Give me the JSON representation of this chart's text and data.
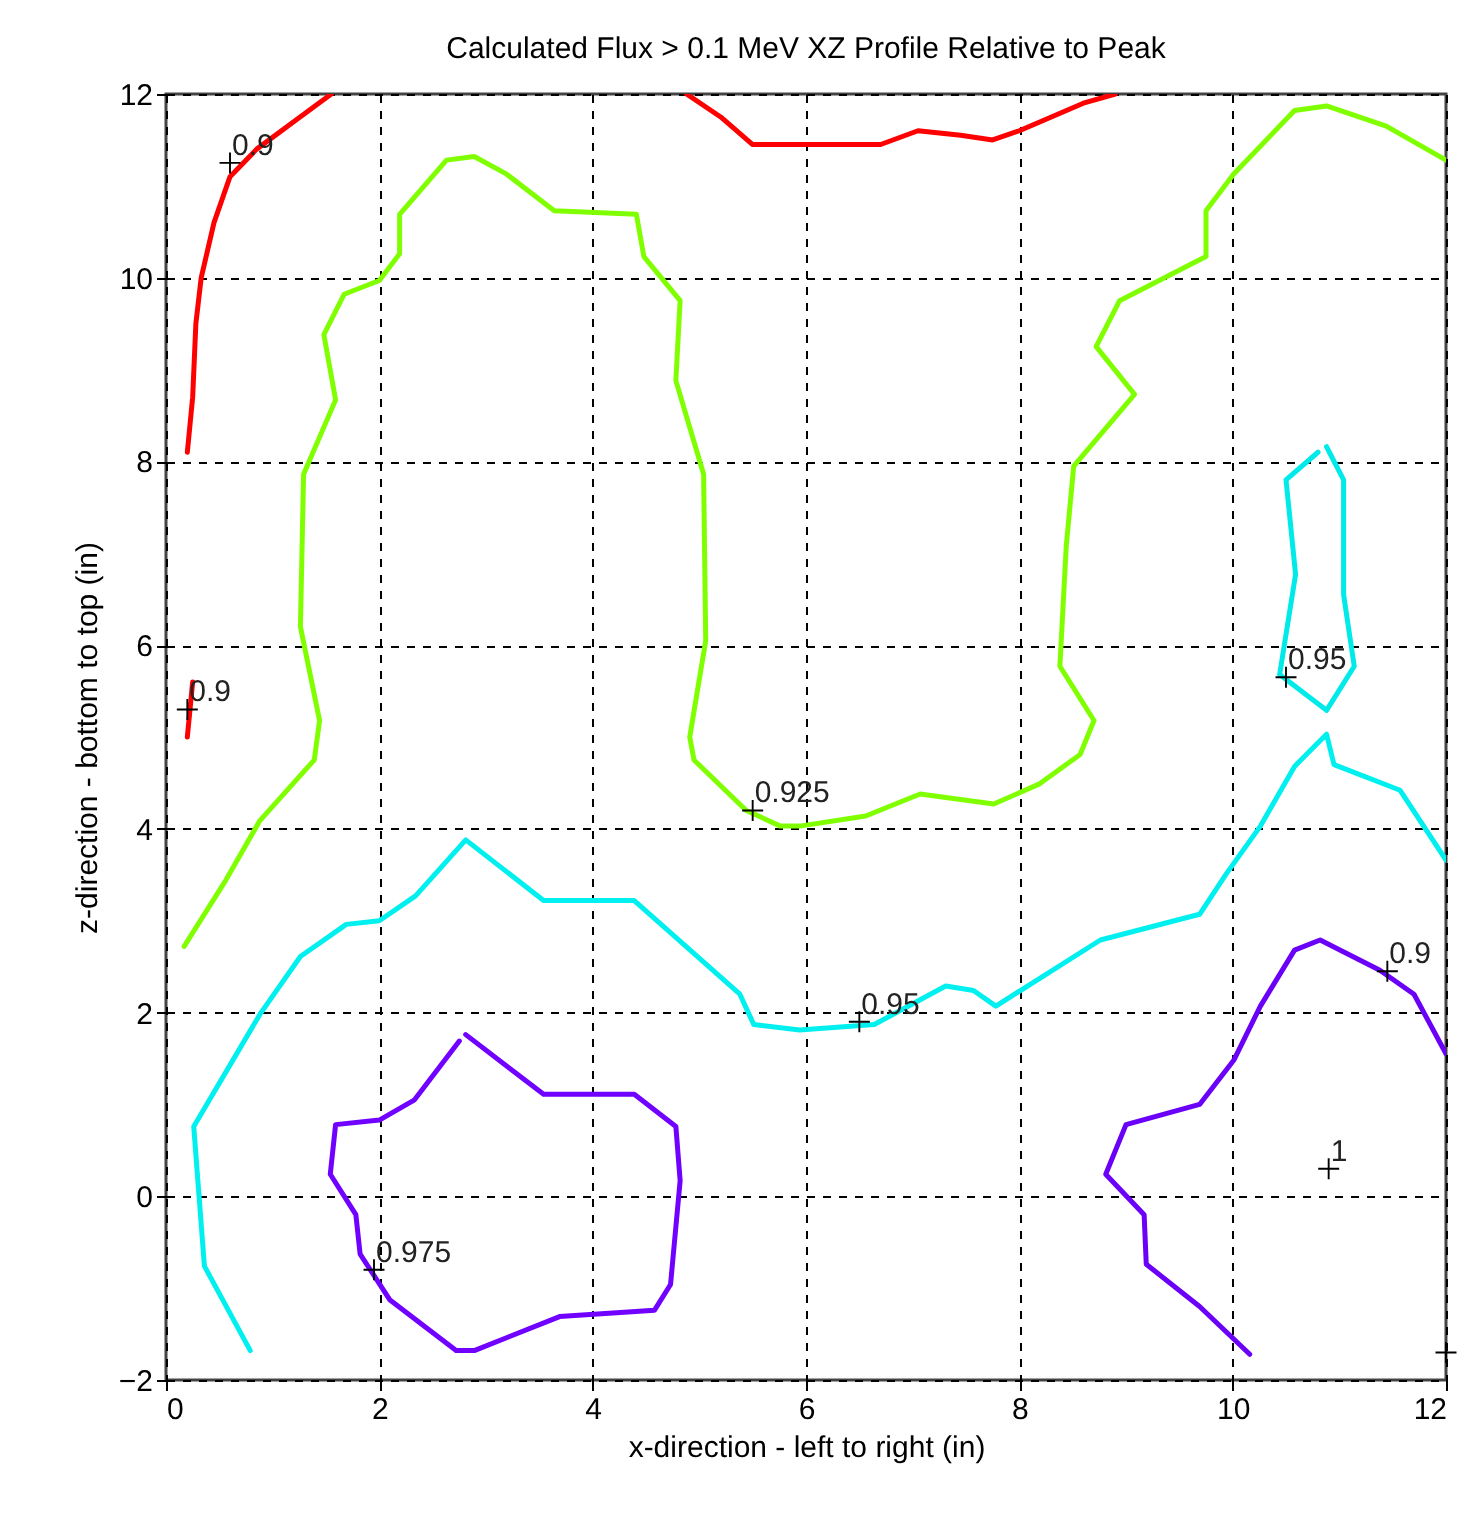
{
  "chart_data": {
    "type": "line",
    "title": "Calculated Flux > 0.1 MeV XZ Profile Relative to Peak",
    "xlabel": "x-direction - left to right (in)",
    "ylabel": "z-direction - bottom to top (in)",
    "xlim": [
      0,
      12
    ],
    "ylim": [
      -2,
      12
    ],
    "xticks": [
      0,
      2,
      4,
      6,
      8,
      10,
      12
    ],
    "yticks": [
      -2,
      0,
      2,
      4,
      6,
      8,
      10,
      12
    ],
    "grid": true,
    "line_style": "solid",
    "series": [
      {
        "color": "#ff0000",
        "x": [
          0.2,
          0.25,
          0.28,
          0.33,
          0.45,
          0.6,
          0.85,
          1.2,
          1.55
        ],
        "values": [
          8.1,
          8.7,
          9.5,
          10,
          10.6,
          11.1,
          11.4,
          11.7,
          12
        ]
      },
      {
        "color": "#fe0000",
        "x": [
          4.88,
          5.2,
          5.5,
          6.3,
          6.7,
          7.05,
          7.45,
          7.75,
          8,
          8.6,
          8.9
        ],
        "values": [
          12,
          11.75,
          11.45,
          11.45,
          11.45,
          11.6,
          11.55,
          11.5,
          11.6,
          11.9,
          12
        ]
      },
      {
        "color": "#fd0000",
        "x": [
          0.2,
          0.25
        ],
        "values": [
          5.0,
          5.6
        ]
      },
      {
        "color": "#80ff00",
        "x": [
          0.17,
          0.56,
          0.88,
          1.39,
          1.44,
          1.26,
          1.29,
          1.59,
          1.48,
          1.67,
          2.0,
          2.19,
          2.19,
          2.63,
          2.89,
          3.19,
          3.64,
          4.41,
          4.48,
          4.82,
          4.78,
          5.04,
          5.06,
          4.91,
          4.95,
          5.44,
          5.76,
          5.94,
          6.56,
          7.07,
          7.76,
          8.19,
          8.57,
          8.7,
          8.38,
          8.44,
          8.51,
          9.08,
          8.72,
          8.94,
          9.75,
          9.75,
          10.01,
          10.58,
          10.88,
          11.44,
          12
        ],
        "values": [
          2.72,
          3.44,
          4.09,
          4.75,
          5.18,
          6.2,
          7.86,
          8.67,
          9.38,
          9.82,
          9.97,
          10.26,
          10.69,
          11.28,
          11.32,
          11.13,
          10.73,
          10.69,
          10.23,
          9.75,
          8.88,
          7.86,
          6.05,
          5.0,
          4.75,
          4.2,
          4.03,
          4.03,
          4.14,
          4.38,
          4.27,
          4.49,
          4.81,
          5.18,
          5.77,
          7.08,
          7.95,
          8.73,
          9.25,
          9.75,
          10.23,
          10.73,
          11.13,
          11.82,
          11.87,
          11.65,
          11.28
        ]
      },
      {
        "color": "#00f0f0",
        "x": [
          0.79,
          0.36,
          0.26,
          0.88,
          1.26,
          1.69,
          2.0,
          2.34,
          2.81,
          3.54,
          4.39,
          5.38,
          5.51,
          5.94,
          6.64,
          7.31,
          7.57,
          7.78,
          8.01,
          8.76,
          9.69,
          9.94,
          10.26,
          10.58,
          10.88,
          10.95,
          11.57,
          12
        ],
        "values": [
          -1.68,
          -0.76,
          0.76,
          1.98,
          2.61,
          2.96,
          3.0,
          3.27,
          3.88,
          3.22,
          3.22,
          2.2,
          1.87,
          1.81,
          1.87,
          2.29,
          2.24,
          2.07,
          2.24,
          2.79,
          3.07,
          3.51,
          4.03,
          4.68,
          5.03,
          4.7,
          4.42,
          3.66
        ]
      },
      {
        "color": "#00eaea",
        "x": [
          10.88,
          11.04,
          11.04,
          11.14,
          10.88,
          10.44,
          10.59,
          10.5,
          10.8
        ],
        "values": [
          8.16,
          7.8,
          6.55,
          5.77,
          5.29,
          5.68,
          6.77,
          7.8,
          8.1
        ]
      },
      {
        "color": "#7000ff",
        "x": [
          2.81,
          3.54,
          4.39,
          4.78,
          4.82,
          4.73,
          4.58,
          3.69,
          2.89,
          2.72,
          2.1,
          1.82,
          1.78,
          1.54,
          1.59,
          2.0,
          2.33,
          2.75
        ],
        "values": [
          1.76,
          1.11,
          1.11,
          0.76,
          0.17,
          -0.96,
          -1.24,
          -1.31,
          -1.68,
          -1.68,
          -1.13,
          -0.63,
          -0.2,
          0.24,
          0.78,
          0.83,
          1.05,
          1.69
        ]
      },
      {
        "color": "#6a00f8",
        "x": [
          10.16,
          9.69,
          9.19,
          9.17,
          8.81,
          9.0,
          9.69,
          10.01,
          10.26,
          10.58,
          10.82,
          11.38,
          11.7,
          12
        ],
        "values": [
          -1.72,
          -1.2,
          -0.74,
          -0.2,
          0.24,
          0.78,
          1.0,
          1.48,
          2.07,
          2.68,
          2.79,
          2.46,
          2.2,
          1.55
        ]
      },
      {
        "type": "scatter",
        "color": "#000000",
        "marker": "cross",
        "x": [
          0.6,
          0.2,
          5.5,
          10.5,
          6.5,
          11.45,
          1.95,
          10.9,
          12
        ],
        "values": [
          11.25,
          5.3,
          4.2,
          5.65,
          1.9,
          2.45,
          -0.8,
          0.3,
          -1.7
        ]
      }
    ],
    "annotations": [
      {
        "text": "0.9",
        "x": 0.6,
        "y": 11.25
      },
      {
        "text": "0.9",
        "x": 0.2,
        "y": 5.3
      },
      {
        "text": "0.925",
        "x": 5.5,
        "y": 4.2
      },
      {
        "text": "0.95",
        "x": 10.5,
        "y": 5.65
      },
      {
        "text": "0.95",
        "x": 6.5,
        "y": 1.9
      },
      {
        "text": "0.9",
        "x": 11.45,
        "y": 2.45
      },
      {
        "text": "0.975",
        "x": 1.95,
        "y": -0.8
      },
      {
        "text": "1",
        "x": 10.9,
        "y": 0.3
      }
    ]
  }
}
